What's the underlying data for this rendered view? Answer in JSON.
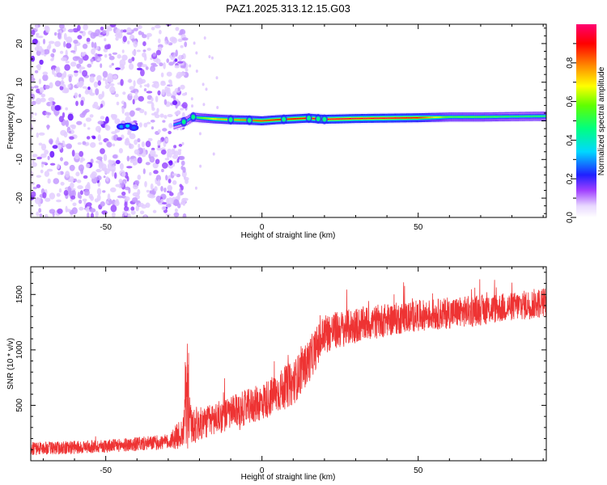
{
  "title": "PAZ1.2025.313.12.15.G03",
  "chart_data": [
    {
      "type": "heatmap",
      "name": "spectrogram",
      "xlabel": "Height of straight line (km)",
      "ylabel": "Frequency (Hz)",
      "xlim": [
        -74,
        91
      ],
      "ylim": [
        -25,
        25
      ],
      "xticks": [
        -50,
        0,
        50
      ],
      "yticks": [
        -20,
        -10,
        0,
        10,
        20
      ],
      "colorbar": {
        "label": "Normalized spectral amplitude",
        "range": [
          0,
          1
        ],
        "ticks": [
          "0.0",
          "0.2",
          "0.4",
          "0.6",
          "0.8"
        ],
        "colormap": [
          "#ffffff",
          "#e0c8ff",
          "#a040ff",
          "#2020ff",
          "#00e8ff",
          "#00ff60",
          "#80ff00",
          "#ffff00",
          "#ff8000",
          "#ff0000",
          "#ff0060"
        ]
      },
      "noise_region_x": [
        -74,
        -26
      ],
      "signal": {
        "x": [
          -28,
          -24,
          -22,
          -20,
          -15,
          -10,
          -5,
          0,
          5,
          10,
          15,
          20,
          30,
          40,
          50,
          55,
          60,
          70,
          80,
          91
        ],
        "freq": [
          -1,
          0,
          1,
          0.8,
          0.5,
          0.3,
          0.2,
          0,
          0.3,
          0.5,
          0.7,
          0.4,
          0.6,
          0.7,
          0.8,
          0.9,
          1.0,
          1.0,
          1.1,
          1.2
        ],
        "amplitude": [
          0.3,
          0.35,
          0.45,
          0.55,
          0.7,
          0.75,
          0.8,
          0.85,
          0.9,
          0.9,
          0.92,
          0.95,
          0.95,
          0.95,
          0.9,
          0.7,
          0.55,
          0.55,
          0.5,
          0.5
        ]
      }
    },
    {
      "type": "line",
      "name": "snr",
      "xlabel": "Height of straight line (km)",
      "ylabel": "SNR (10 * v/v)",
      "xlim": [
        -74,
        91
      ],
      "ylim": [
        0,
        1750
      ],
      "xticks": [
        -50,
        0,
        50
      ],
      "yticks": [
        500,
        1000,
        1500
      ],
      "color": "#ee3333",
      "trend": {
        "x": [
          -74,
          -60,
          -45,
          -30,
          -25,
          -24,
          -23,
          -20,
          -10,
          0,
          10,
          15,
          20,
          30,
          40,
          50,
          60,
          70,
          80,
          91
        ],
        "y": [
          110,
          120,
          140,
          170,
          260,
          1050,
          320,
          330,
          430,
          530,
          700,
          900,
          1150,
          1220,
          1270,
          1310,
          1330,
          1360,
          1390,
          1430
        ],
        "noise": [
          60,
          60,
          60,
          70,
          150,
          0,
          200,
          150,
          150,
          170,
          200,
          200,
          180,
          160,
          150,
          140,
          140,
          140,
          130,
          140
        ]
      }
    }
  ]
}
